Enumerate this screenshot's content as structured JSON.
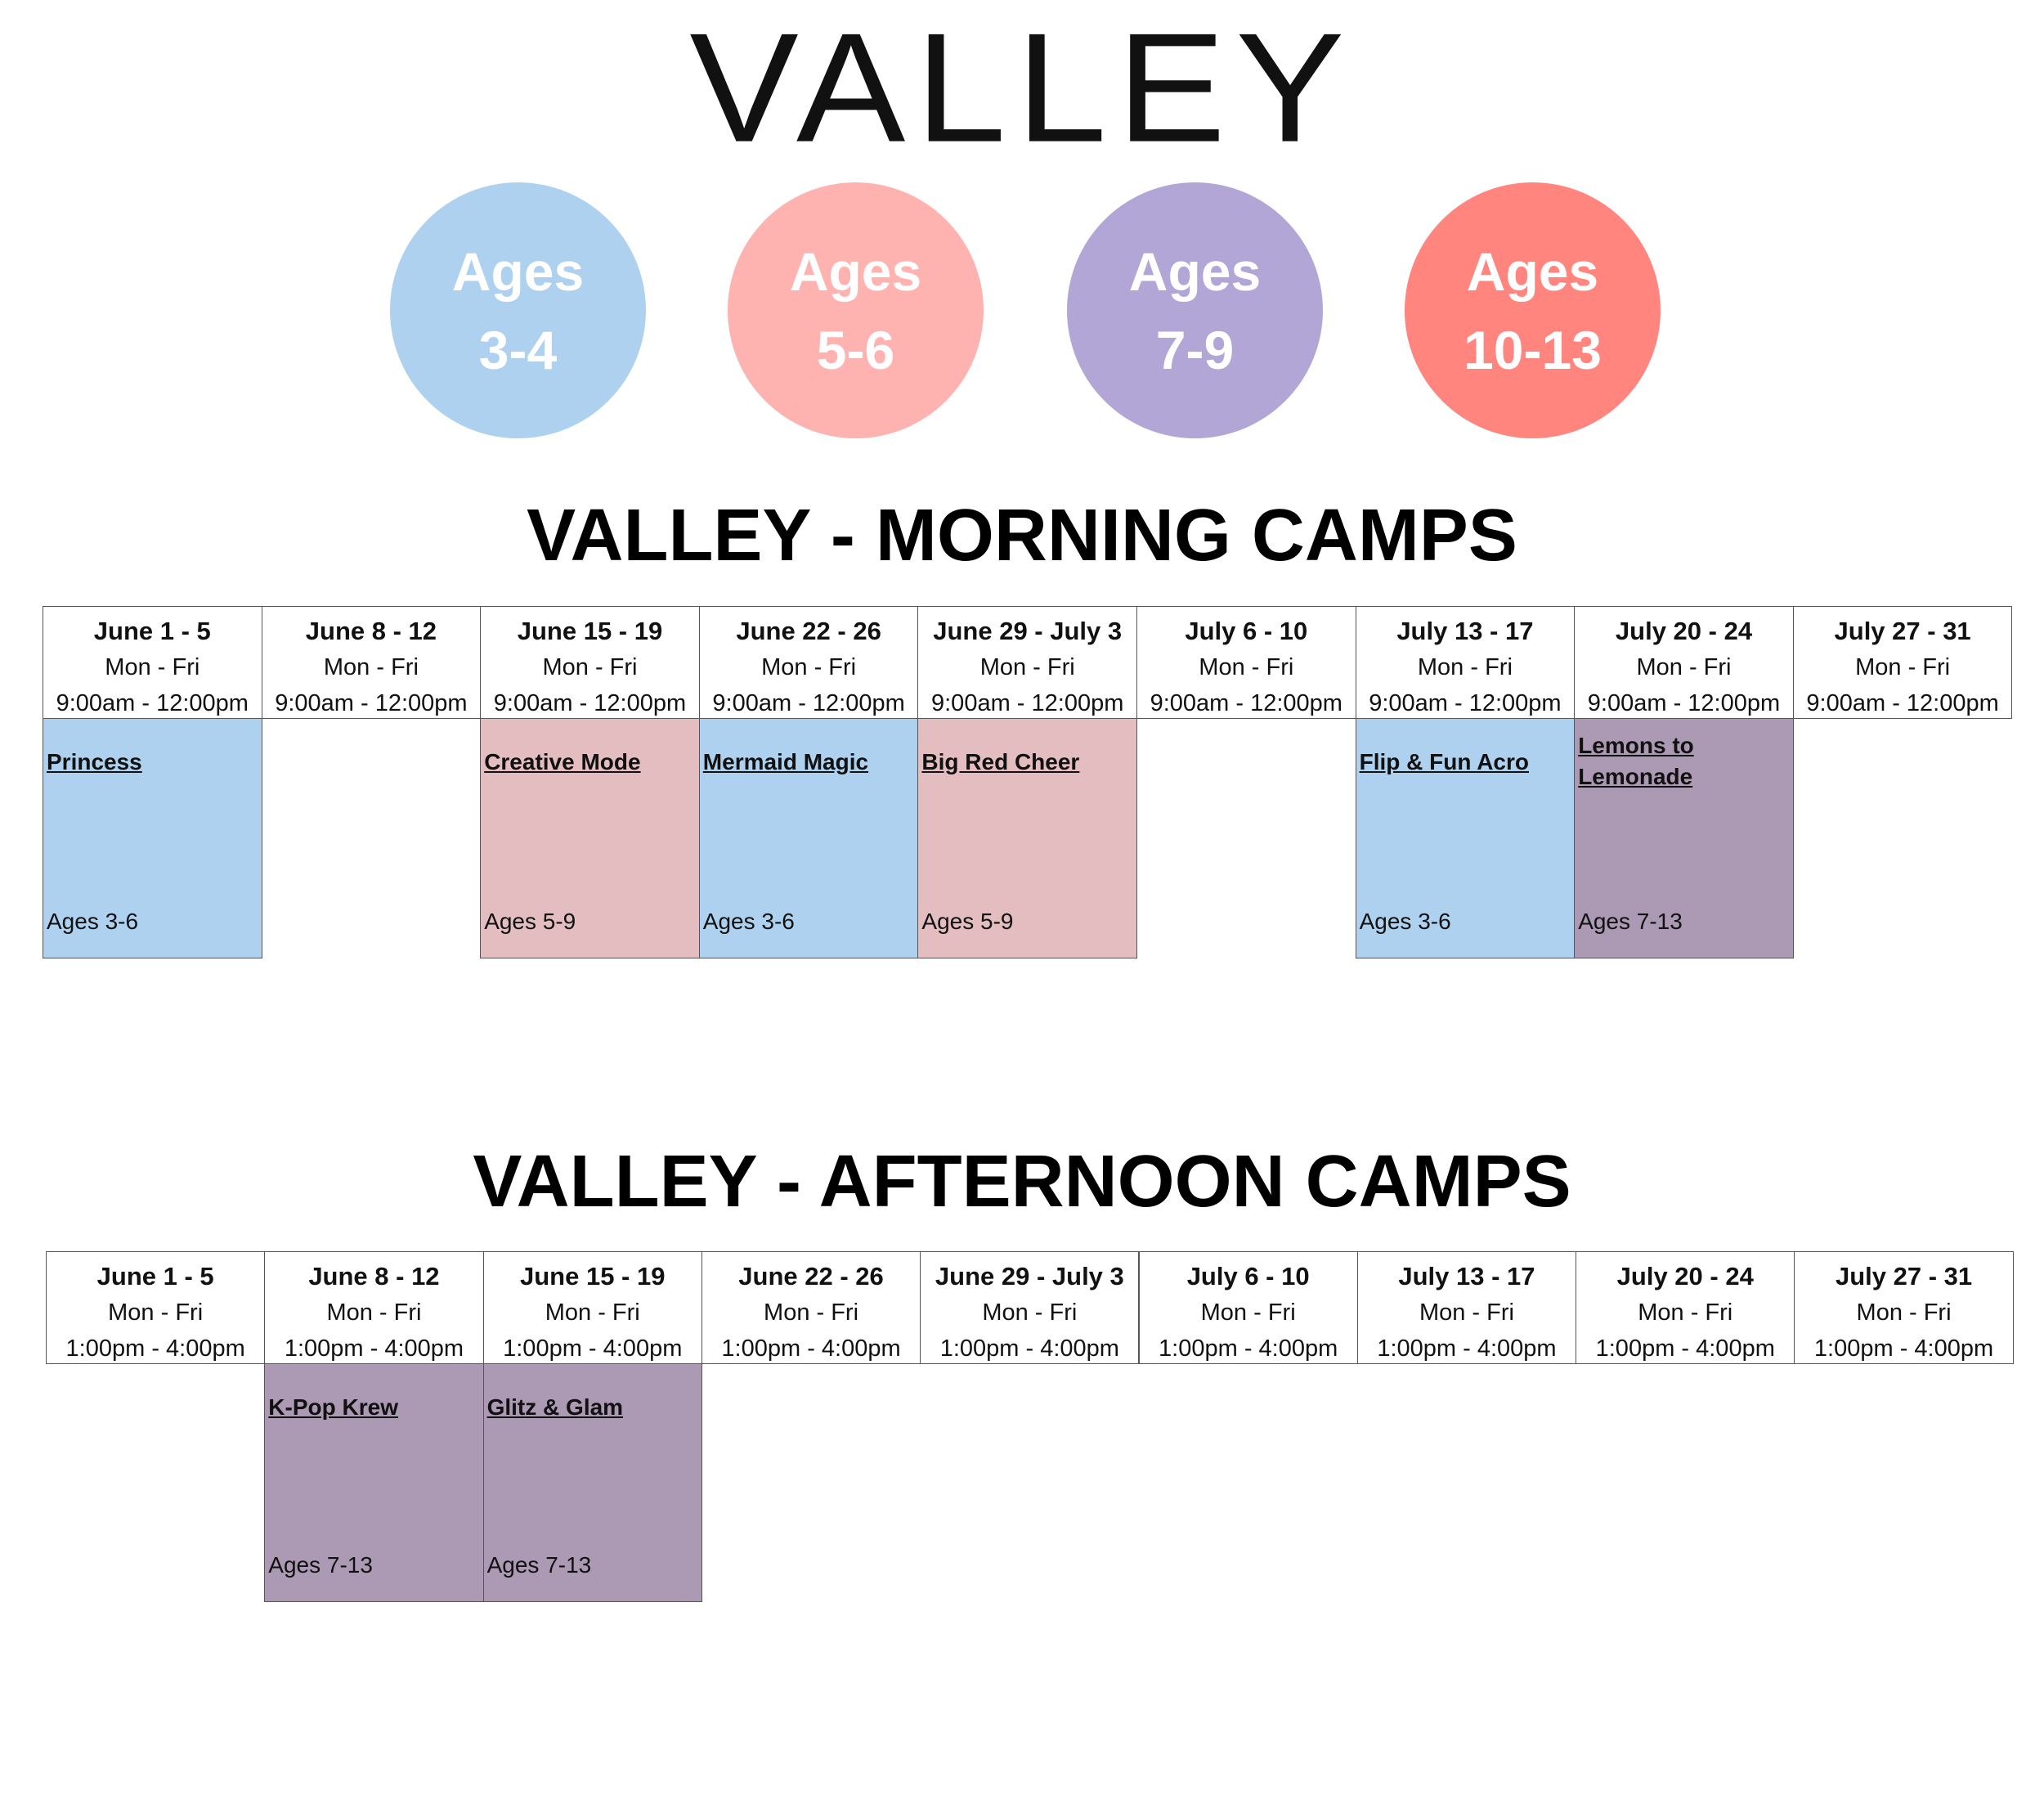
{
  "logo": "VALLEY",
  "legend": [
    {
      "line1": "Ages",
      "line2": "3-4",
      "color": "#add1ee"
    },
    {
      "line1": "Ages",
      "line2": "5-6",
      "color": "#ffb3b0"
    },
    {
      "line1": "Ages",
      "line2": "7-9",
      "color": "#b2a6d6"
    },
    {
      "line1": "Ages",
      "line2": "10-13",
      "color": "#ff857e"
    }
  ],
  "morning": {
    "title": "VALLEY - MORNING CAMPS",
    "weeks": [
      {
        "dates": "June 1 - 5",
        "days": "Mon - Fri",
        "time": "9:00am - 12:00pm"
      },
      {
        "dates": "June 8 - 12",
        "days": "Mon - Fri",
        "time": "9:00am - 12:00pm"
      },
      {
        "dates": "June 15 - 19",
        "days": "Mon - Fri",
        "time": "9:00am - 12:00pm"
      },
      {
        "dates": "June 22 - 26",
        "days": "Mon - Fri",
        "time": "9:00am - 12:00pm"
      },
      {
        "dates": "June 29 - July 3",
        "days": "Mon - Fri",
        "time": "9:00am - 12:00pm"
      },
      {
        "dates": "July 6 - 10",
        "days": "Mon - Fri",
        "time": "9:00am - 12:00pm"
      },
      {
        "dates": "July 13 - 17",
        "days": "Mon - Fri",
        "time": "9:00am - 12:00pm"
      },
      {
        "dates": "July 20 - 24",
        "days": "Mon - Fri",
        "time": "9:00am - 12:00pm"
      },
      {
        "dates": "July 27 - 31",
        "days": "Mon - Fri",
        "time": "9:00am - 12:00pm"
      }
    ],
    "camps": [
      {
        "name": "Princess",
        "ages": "Ages 3-6",
        "color": "#add1ee"
      },
      null,
      {
        "name": "Creative Mode",
        "ages": "Ages 5-9",
        "color": "#e3bdbf"
      },
      {
        "name": "Mermaid Magic",
        "ages": "Ages 3-6",
        "color": "#add1ee"
      },
      {
        "name": "Big Red Cheer",
        "ages": "Ages 5-9",
        "color": "#e3bdbf"
      },
      null,
      {
        "name": "Flip & Fun Acro",
        "ages": "Ages 3-6",
        "color": "#add1ee"
      },
      {
        "name": "Lemons to Lemonade",
        "ages": "Ages 7-13",
        "color": "#ac99b4"
      },
      null
    ]
  },
  "afternoon": {
    "title": "VALLEY - AFTERNOON CAMPS",
    "weeks": [
      {
        "dates": "June 1 - 5",
        "days": "Mon - Fri",
        "time": "1:00pm - 4:00pm"
      },
      {
        "dates": "June 8 - 12",
        "days": "Mon - Fri",
        "time": "1:00pm - 4:00pm"
      },
      {
        "dates": "June 15 - 19",
        "days": "Mon - Fri",
        "time": "1:00pm - 4:00pm"
      },
      {
        "dates": "June 22 - 26",
        "days": "Mon - Fri",
        "time": "1:00pm - 4:00pm"
      },
      {
        "dates": "June 29 - July 3",
        "days": "Mon - Fri",
        "time": "1:00pm - 4:00pm"
      },
      {
        "dates": "July 6 - 10",
        "days": "Mon - Fri",
        "time": "1:00pm - 4:00pm"
      },
      {
        "dates": "July 13 - 17",
        "days": "Mon - Fri",
        "time": "1:00pm - 4:00pm"
      },
      {
        "dates": "July 20 - 24",
        "days": "Mon - Fri",
        "time": "1:00pm - 4:00pm"
      },
      {
        "dates": "July 27 - 31",
        "days": "Mon - Fri",
        "time": "1:00pm - 4:00pm"
      }
    ],
    "camps": [
      null,
      {
        "name": "K-Pop Krew",
        "ages": "Ages 7-13",
        "color": "#ac99b4"
      },
      {
        "name": "Glitz & Glam",
        "ages": "Ages 7-13",
        "color": "#ac99b4"
      },
      null,
      null,
      null,
      null,
      null,
      null
    ]
  }
}
